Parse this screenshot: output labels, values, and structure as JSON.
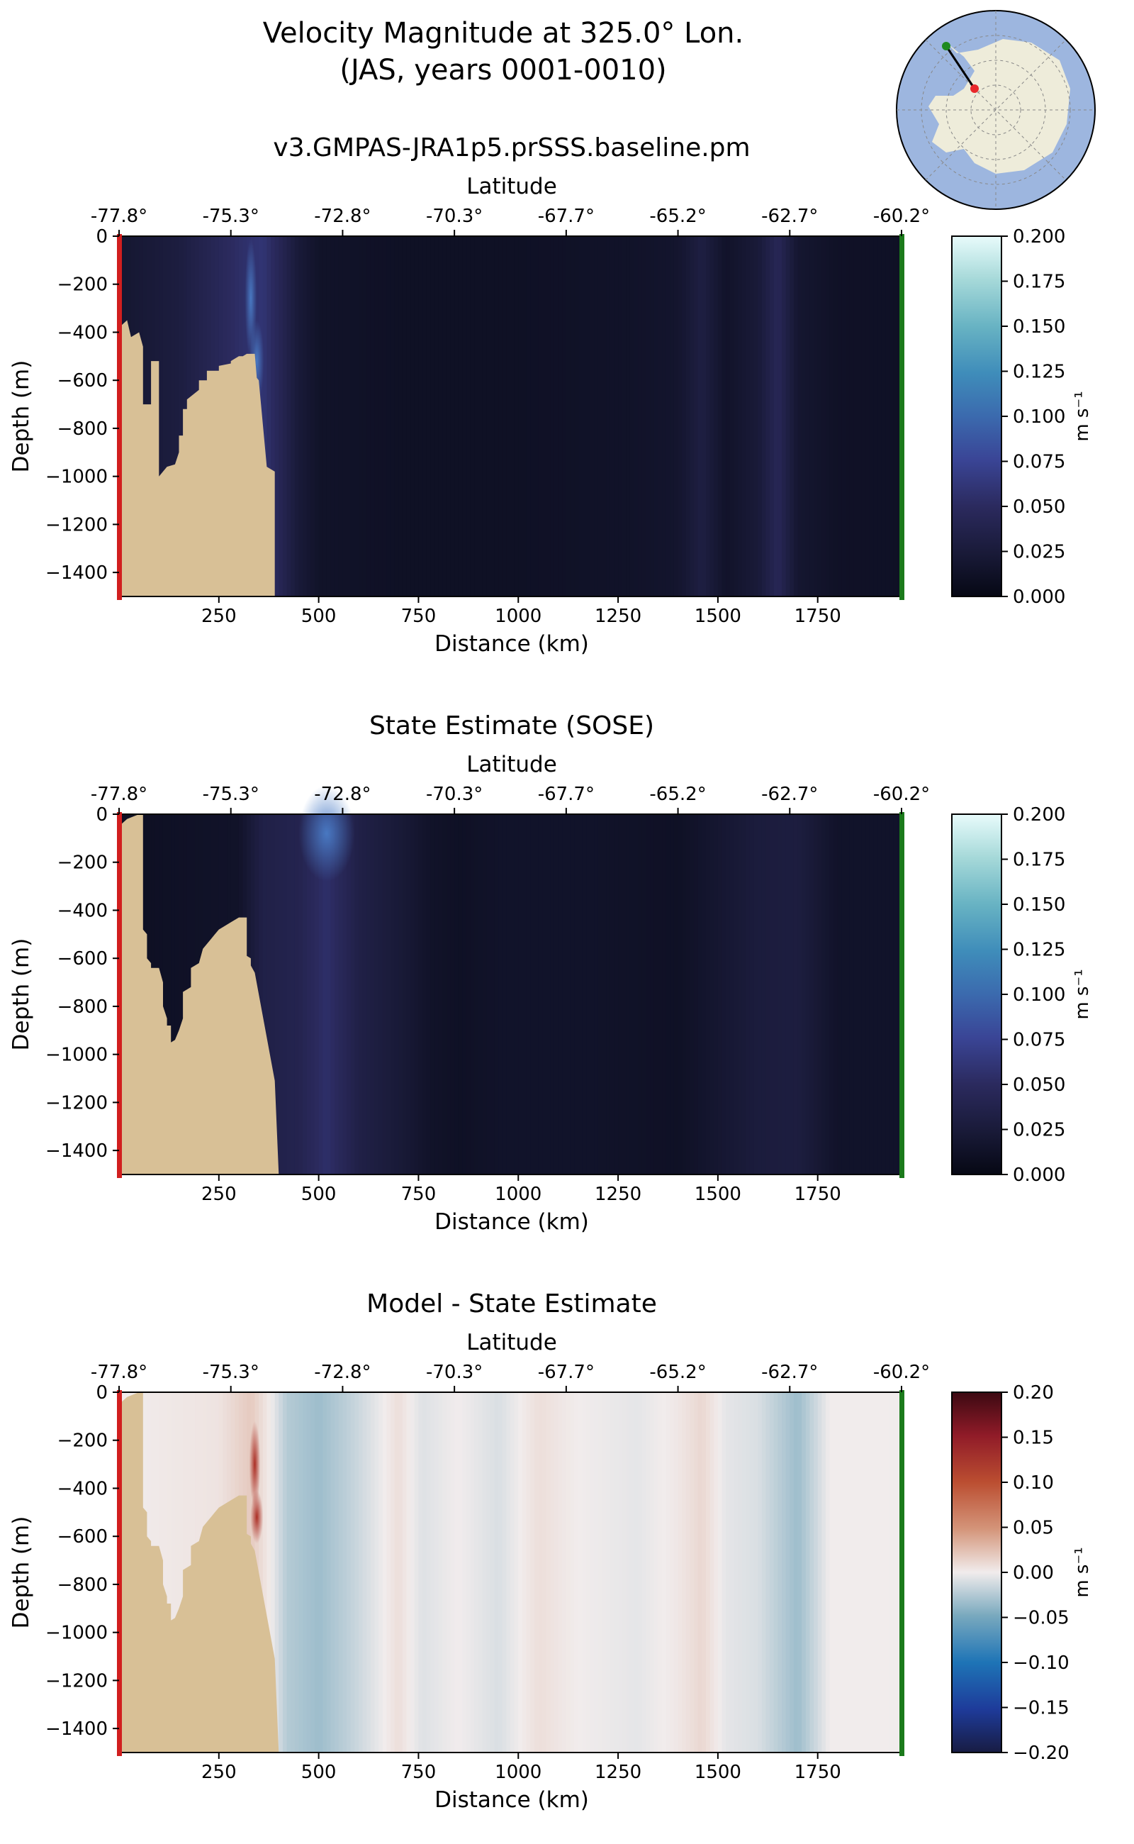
{
  "figure": {
    "title_line1": "Velocity Magnitude at 325.0° Lon.",
    "title_line2": "(JAS, years 0001-0010)"
  },
  "inset_map": {
    "description": "south-polar-map",
    "start_color": "#2e8b2e",
    "end_color": "#e8282b"
  },
  "chart_data": [
    {
      "type": "heatmap",
      "title": "v3.GMPAS-JRA1p5.prSSS.baseline.pm",
      "xlabel": "Distance (km)",
      "ylabel": "Depth (m)",
      "top_xlabel": "Latitude",
      "x_ticks": [
        "250",
        "500",
        "750",
        "1000",
        "1250",
        "1500",
        "1750"
      ],
      "x_tick_values": [
        250,
        500,
        750,
        1000,
        1250,
        1500,
        1750
      ],
      "lat_ticks": [
        "-77.8°",
        "-75.3°",
        "-72.8°",
        "-70.3°",
        "-67.7°",
        "-65.2°",
        "-62.7°",
        "-60.2°"
      ],
      "y_ticks": [
        "0",
        "−200",
        "−400",
        "−600",
        "−800",
        "−1000",
        "−1200",
        "−1400"
      ],
      "y_tick_values": [
        0,
        -200,
        -400,
        -600,
        -800,
        -1000,
        -1200,
        -1400
      ],
      "xlim": [
        0,
        1960
      ],
      "ylim": [
        -1500,
        0
      ],
      "colorbar": {
        "label": "m s⁻¹",
        "ticks": [
          "0.200",
          "0.175",
          "0.150",
          "0.125",
          "0.100",
          "0.075",
          "0.050",
          "0.025",
          "0.000"
        ],
        "vmin": 0,
        "vmax": 0.2,
        "cmap": "speed"
      },
      "bathymetry": [
        [
          0,
          -1500
        ],
        [
          0,
          -380
        ],
        [
          20,
          -350
        ],
        [
          30,
          -420
        ],
        [
          50,
          -400
        ],
        [
          60,
          -460
        ],
        [
          60,
          -700
        ],
        [
          80,
          -700
        ],
        [
          80,
          -520
        ],
        [
          100,
          -520
        ],
        [
          100,
          -1000
        ],
        [
          120,
          -960
        ],
        [
          140,
          -950
        ],
        [
          150,
          -900
        ],
        [
          150,
          -830
        ],
        [
          160,
          -830
        ],
        [
          160,
          -720
        ],
        [
          170,
          -720
        ],
        [
          170,
          -680
        ],
        [
          200,
          -640
        ],
        [
          200,
          -600
        ],
        [
          220,
          -600
        ],
        [
          220,
          -560
        ],
        [
          250,
          -560
        ],
        [
          250,
          -540
        ],
        [
          280,
          -530
        ],
        [
          280,
          -520
        ],
        [
          300,
          -500
        ],
        [
          310,
          -500
        ],
        [
          320,
          -490
        ],
        [
          340,
          -490
        ],
        [
          345,
          -590
        ],
        [
          350,
          -600
        ],
        [
          370,
          -960
        ],
        [
          390,
          -980
        ],
        [
          390,
          -1500
        ]
      ],
      "profile": [
        [
          0,
          0.02
        ],
        [
          150,
          0.03
        ],
        [
          310,
          0.055
        ],
        [
          360,
          0.06
        ],
        [
          450,
          0.025
        ],
        [
          500,
          0.015
        ],
        [
          700,
          0.012
        ],
        [
          1000,
          0.012
        ],
        [
          1300,
          0.015
        ],
        [
          1400,
          0.018
        ],
        [
          1460,
          0.032
        ],
        [
          1520,
          0.015
        ],
        [
          1600,
          0.025
        ],
        [
          1650,
          0.045
        ],
        [
          1700,
          0.02
        ],
        [
          1800,
          0.013
        ],
        [
          1960,
          0.012
        ]
      ],
      "features": [
        [
          345,
          -520,
          18,
          170,
          0.11
        ],
        [
          330,
          -260,
          15,
          250,
          0.07
        ]
      ]
    },
    {
      "type": "heatmap",
      "title": "State Estimate (SOSE)",
      "xlabel": "Distance (km)",
      "ylabel": "Depth (m)",
      "top_xlabel": "Latitude",
      "x_ticks": [
        "250",
        "500",
        "750",
        "1000",
        "1250",
        "1500",
        "1750"
      ],
      "x_tick_values": [
        250,
        500,
        750,
        1000,
        1250,
        1500,
        1750
      ],
      "lat_ticks": [
        "-77.8°",
        "-75.3°",
        "-72.8°",
        "-70.3°",
        "-67.7°",
        "-65.2°",
        "-62.7°",
        "-60.2°"
      ],
      "y_ticks": [
        "0",
        "−200",
        "−400",
        "−600",
        "−800",
        "−1000",
        "−1200",
        "−1400"
      ],
      "y_tick_values": [
        0,
        -200,
        -400,
        -600,
        -800,
        -1000,
        -1200,
        -1400
      ],
      "xlim": [
        0,
        1960
      ],
      "ylim": [
        -1500,
        0
      ],
      "colorbar": {
        "label": "m s⁻¹",
        "ticks": [
          "0.200",
          "0.175",
          "0.150",
          "0.125",
          "0.100",
          "0.075",
          "0.050",
          "0.025",
          "0.000"
        ],
        "vmin": 0,
        "vmax": 0.2,
        "cmap": "speed"
      },
      "bathymetry": [
        [
          0,
          -1500
        ],
        [
          0,
          -50
        ],
        [
          20,
          -20
        ],
        [
          50,
          0
        ],
        [
          60,
          0
        ],
        [
          60,
          -480
        ],
        [
          70,
          -500
        ],
        [
          70,
          -600
        ],
        [
          80,
          -620
        ],
        [
          80,
          -640
        ],
        [
          100,
          -640
        ],
        [
          110,
          -700
        ],
        [
          110,
          -800
        ],
        [
          120,
          -850
        ],
        [
          120,
          -880
        ],
        [
          130,
          -880
        ],
        [
          130,
          -950
        ],
        [
          140,
          -940
        ],
        [
          150,
          -900
        ],
        [
          160,
          -850
        ],
        [
          160,
          -740
        ],
        [
          180,
          -720
        ],
        [
          180,
          -640
        ],
        [
          200,
          -620
        ],
        [
          210,
          -560
        ],
        [
          230,
          -520
        ],
        [
          240,
          -500
        ],
        [
          250,
          -480
        ],
        [
          260,
          -470
        ],
        [
          280,
          -450
        ],
        [
          300,
          -430
        ],
        [
          320,
          -430
        ],
        [
          320,
          -590
        ],
        [
          330,
          -600
        ],
        [
          330,
          -630
        ],
        [
          340,
          -660
        ],
        [
          390,
          -1110
        ],
        [
          400,
          -1500
        ]
      ],
      "profile": [
        [
          0,
          0.01
        ],
        [
          300,
          0.015
        ],
        [
          360,
          0.035
        ],
        [
          450,
          0.04
        ],
        [
          520,
          0.055
        ],
        [
          600,
          0.035
        ],
        [
          700,
          0.025
        ],
        [
          780,
          0.015
        ],
        [
          850,
          0.012
        ],
        [
          950,
          0.015
        ],
        [
          1050,
          0.015
        ],
        [
          1200,
          0.015
        ],
        [
          1400,
          0.012
        ],
        [
          1500,
          0.02
        ],
        [
          1600,
          0.028
        ],
        [
          1700,
          0.03
        ],
        [
          1800,
          0.015
        ],
        [
          1960,
          0.015
        ]
      ],
      "features": [
        [
          520,
          -80,
          70,
          200,
          0.08
        ]
      ]
    },
    {
      "type": "heatmap",
      "title": "Model - State Estimate",
      "xlabel": "Distance (km)",
      "ylabel": "Depth (m)",
      "top_xlabel": "Latitude",
      "x_ticks": [
        "250",
        "500",
        "750",
        "1000",
        "1250",
        "1500",
        "1750"
      ],
      "x_tick_values": [
        250,
        500,
        750,
        1000,
        1250,
        1500,
        1750
      ],
      "lat_ticks": [
        "-77.8°",
        "-75.3°",
        "-72.8°",
        "-70.3°",
        "-67.7°",
        "-65.2°",
        "-62.7°",
        "-60.2°"
      ],
      "y_ticks": [
        "0",
        "−200",
        "−400",
        "−600",
        "−800",
        "−1000",
        "−1200",
        "−1400"
      ],
      "y_tick_values": [
        0,
        -200,
        -400,
        -600,
        -800,
        -1000,
        -1200,
        -1400
      ],
      "xlim": [
        0,
        1960
      ],
      "ylim": [
        -1500,
        0
      ],
      "colorbar": {
        "label": "m s⁻¹",
        "ticks": [
          "0.20",
          "0.15",
          "0.10",
          "0.05",
          "0.00",
          "−0.05",
          "−0.10",
          "−0.15",
          "−0.20"
        ],
        "vmin": -0.2,
        "vmax": 0.2,
        "cmap": "balance"
      },
      "bathymetry": [
        [
          0,
          -1500
        ],
        [
          0,
          -50
        ],
        [
          20,
          -20
        ],
        [
          50,
          0
        ],
        [
          60,
          0
        ],
        [
          60,
          -480
        ],
        [
          70,
          -500
        ],
        [
          70,
          -600
        ],
        [
          80,
          -620
        ],
        [
          80,
          -640
        ],
        [
          100,
          -640
        ],
        [
          110,
          -700
        ],
        [
          110,
          -800
        ],
        [
          120,
          -850
        ],
        [
          120,
          -880
        ],
        [
          130,
          -880
        ],
        [
          130,
          -950
        ],
        [
          140,
          -940
        ],
        [
          150,
          -900
        ],
        [
          160,
          -850
        ],
        [
          160,
          -740
        ],
        [
          180,
          -720
        ],
        [
          180,
          -640
        ],
        [
          200,
          -620
        ],
        [
          210,
          -560
        ],
        [
          230,
          -520
        ],
        [
          240,
          -500
        ],
        [
          250,
          -480
        ],
        [
          260,
          -470
        ],
        [
          280,
          -450
        ],
        [
          300,
          -430
        ],
        [
          320,
          -430
        ],
        [
          320,
          -590
        ],
        [
          330,
          -600
        ],
        [
          330,
          -630
        ],
        [
          340,
          -660
        ],
        [
          390,
          -1110
        ],
        [
          400,
          -1500
        ]
      ],
      "profile": [
        [
          0,
          0.0
        ],
        [
          250,
          0.005
        ],
        [
          330,
          0.02
        ],
        [
          380,
          0.0
        ],
        [
          420,
          -0.025
        ],
        [
          500,
          -0.035
        ],
        [
          580,
          -0.02
        ],
        [
          700,
          0.008
        ],
        [
          760,
          -0.008
        ],
        [
          850,
          0.0
        ],
        [
          950,
          -0.01
        ],
        [
          1050,
          0.008
        ],
        [
          1150,
          0.0
        ],
        [
          1300,
          -0.005
        ],
        [
          1400,
          0.003
        ],
        [
          1460,
          0.012
        ],
        [
          1520,
          -0.005
        ],
        [
          1600,
          -0.01
        ],
        [
          1700,
          -0.035
        ],
        [
          1780,
          0.0
        ],
        [
          1960,
          0.0
        ]
      ],
      "features": [
        [
          345,
          -520,
          16,
          110,
          0.11
        ],
        [
          340,
          -300,
          14,
          180,
          0.04
        ]
      ]
    }
  ]
}
